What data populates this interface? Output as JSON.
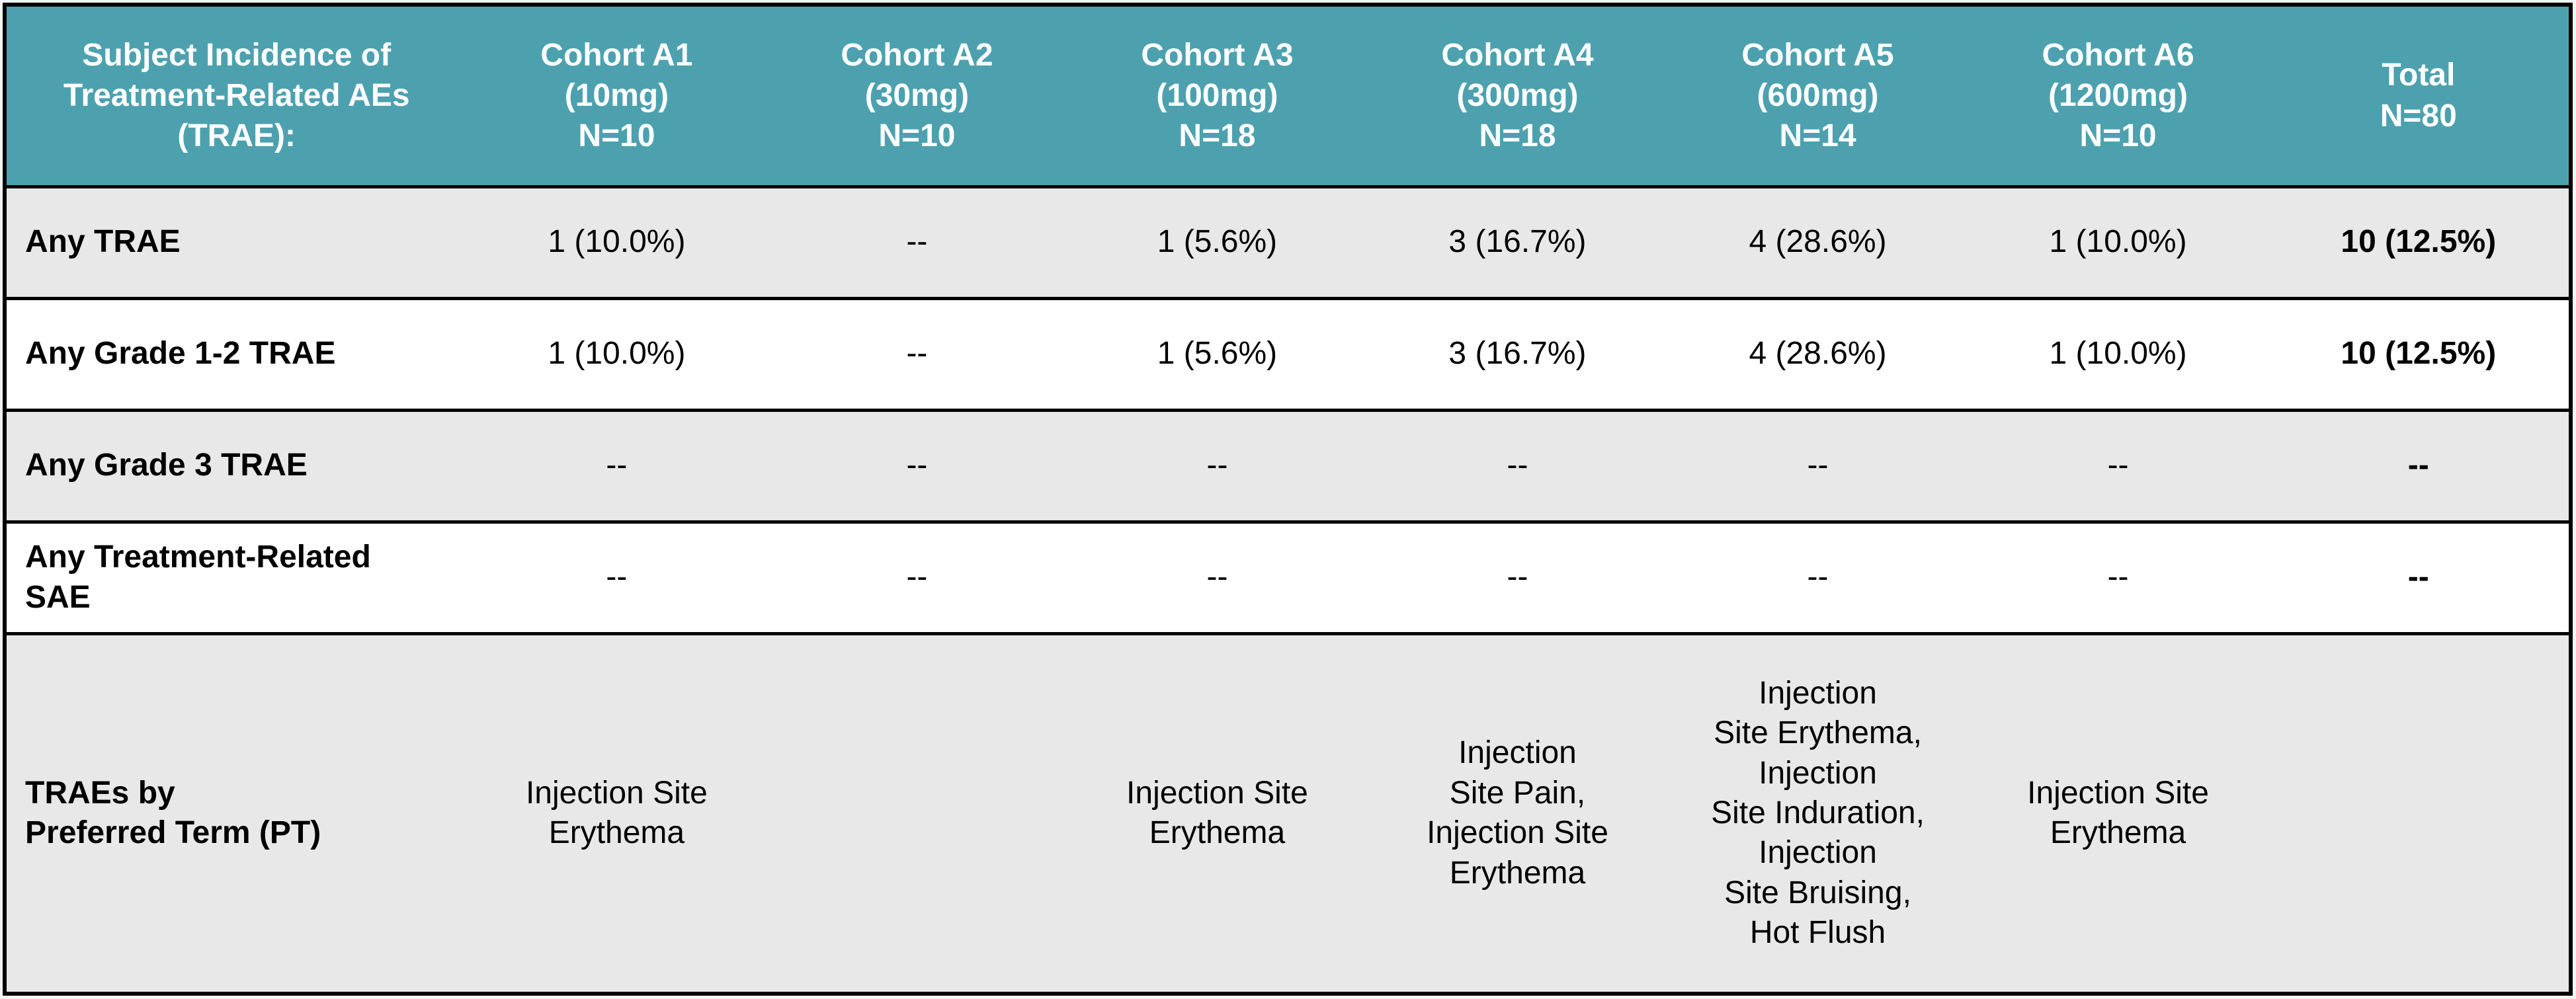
{
  "table": {
    "title": "Subject Incidence of\nTreatment-Related AEs\n(TRAE):",
    "header_columns": [
      "Cohort A1\n(10mg)\nN=10",
      "Cohort A2\n(30mg)\nN=10",
      "Cohort A3\n(100mg)\nN=18",
      "Cohort A4\n(300mg)\nN=18",
      "Cohort A5\n(600mg)\nN=14",
      "Cohort A6\n(1200mg)\nN=10",
      "Total\nN=80"
    ],
    "rows": [
      {
        "label": "Any TRAE",
        "values": [
          "1 (10.0%)",
          "--",
          "1 (5.6%)",
          "3 (16.7%)",
          "4 (28.6%)",
          "1 (10.0%)",
          "10 (12.5%)"
        ]
      },
      {
        "label": "Any Grade 1-2 TRAE",
        "values": [
          "1 (10.0%)",
          "--",
          "1 (5.6%)",
          "3 (16.7%)",
          "4 (28.6%)",
          "1 (10.0%)",
          "10 (12.5%)"
        ]
      },
      {
        "label": "Any Grade 3 TRAE",
        "values": [
          "--",
          "--",
          "--",
          "--",
          "--",
          "--",
          "--"
        ]
      },
      {
        "label": "Any Treatment-Related\nSAE",
        "values": [
          "--",
          "--",
          "--",
          "--",
          "--",
          "--",
          "--"
        ]
      },
      {
        "label": "TRAEs by\nPreferred Term (PT)",
        "values": [
          "Injection Site\nErythema",
          "",
          "Injection Site\nErythema",
          "Injection\nSite Pain,\nInjection Site\nErythema",
          "Injection\nSite Erythema,\nInjection\nSite Induration,\nInjection\nSite Bruising,\nHot Flush",
          "Injection Site\nErythema",
          ""
        ]
      }
    ],
    "colors": {
      "header_bg": "#4DA1AF",
      "header_text": "#FFFFFF",
      "row_shaded_bg": "#E8E8E8",
      "row_plain_bg": "#FFFFFF",
      "body_text": "#000000",
      "border": "#000000"
    }
  }
}
